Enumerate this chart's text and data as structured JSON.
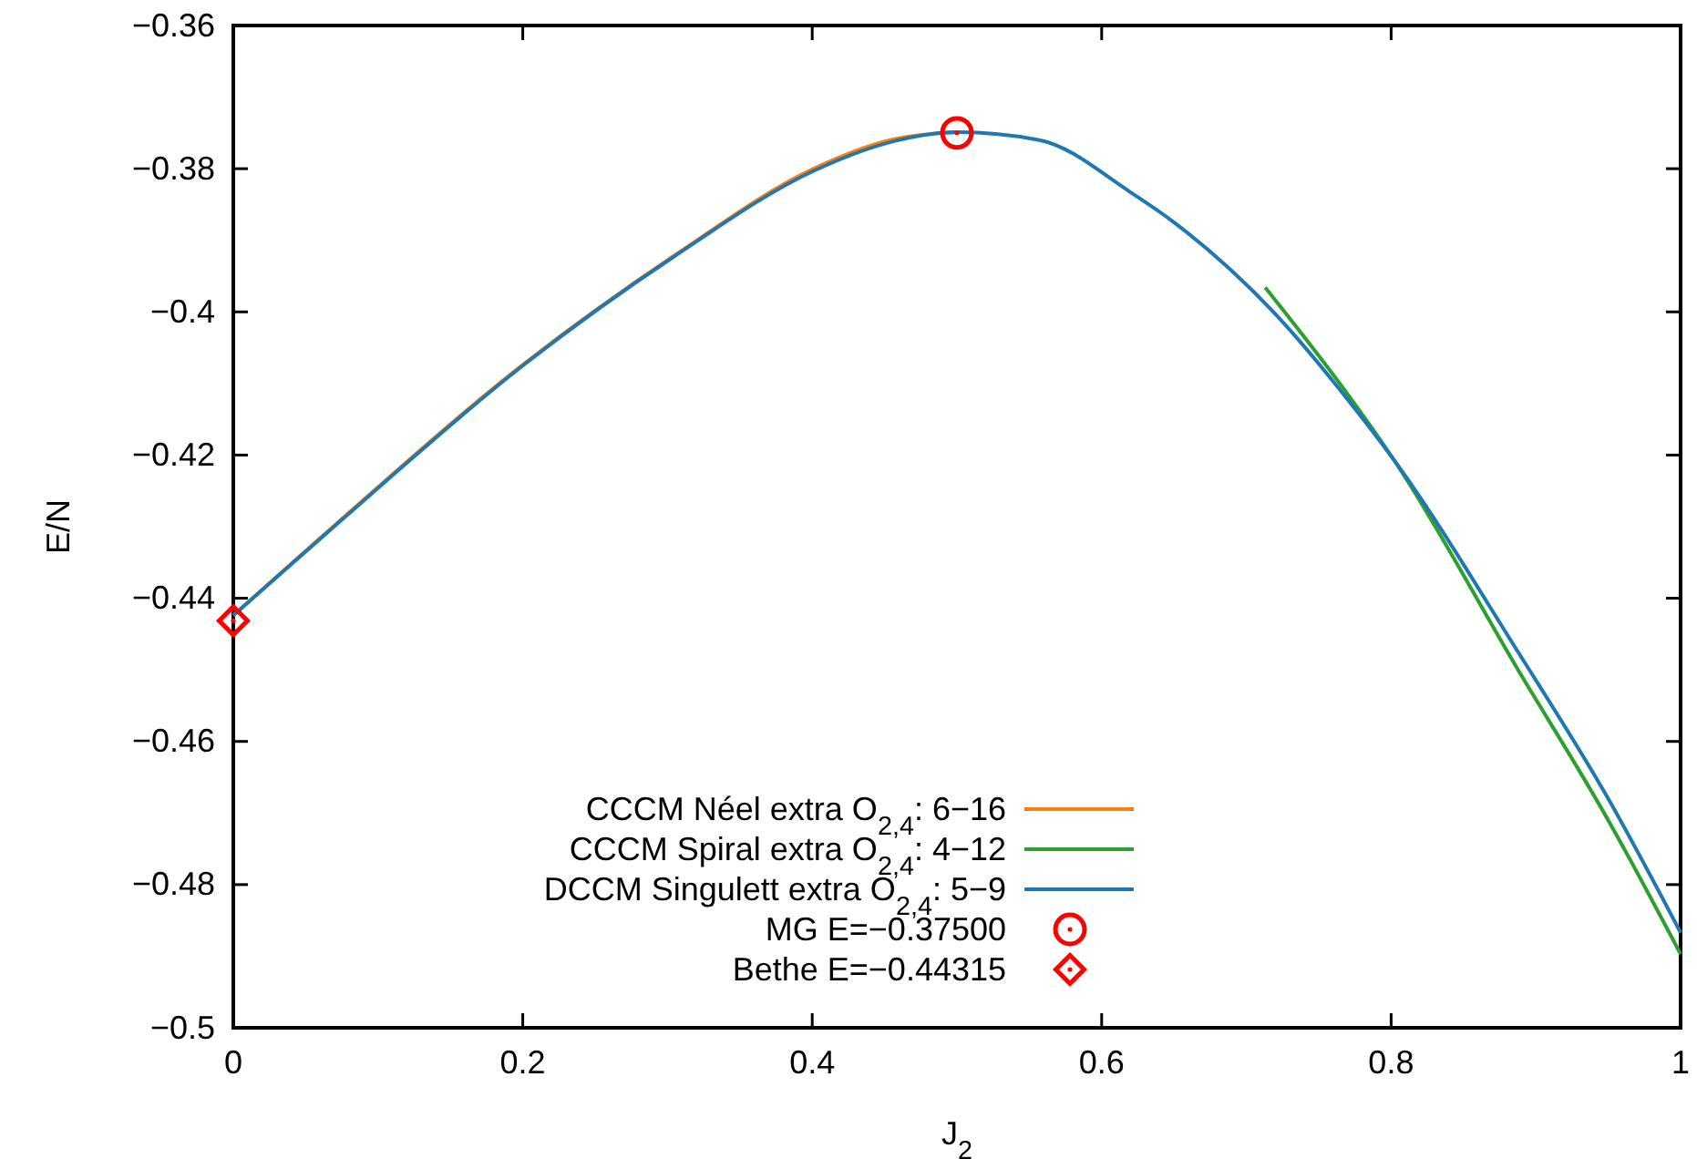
{
  "chart_data": {
    "type": "line",
    "xlabel": "J$_{2}$",
    "ylabel": "E/N",
    "xlim": [
      0,
      1
    ],
    "ylim": [
      -0.5,
      -0.36
    ],
    "xticks": [
      0,
      0.2,
      0.4,
      0.6,
      0.8,
      1
    ],
    "yticks": [
      {
        "value": -0.5,
        "label": "−0.5"
      },
      {
        "value": -0.48,
        "label": "−0.48"
      },
      {
        "value": -0.46,
        "label": "−0.46"
      },
      {
        "value": -0.44,
        "label": "−0.44"
      },
      {
        "value": -0.42,
        "label": "−0.42"
      },
      {
        "value": -0.4,
        "label": "−0.4"
      },
      {
        "value": -0.38,
        "label": "−0.38"
      },
      {
        "value": -0.36,
        "label": "−0.36"
      }
    ],
    "legend": "bottom",
    "grid": false,
    "line_style": "solid",
    "series": [
      {
        "name": "CCCM Néel extra O$_{2,4}$: 6−16",
        "color": "#ff7f0e",
        "x": [
          0,
          0.074,
          0.2,
          0.305,
          0.401,
          0.452,
          0.5
        ],
        "values": [
          -0.4424,
          -0.4291,
          -0.4074,
          -0.3921,
          -0.38,
          -0.3761,
          -0.3749
        ]
      },
      {
        "name": "CCCM Spiral extra O$_{2,4}$: 4−12",
        "color": "#2ca02c",
        "x": [
          0.713,
          0.771,
          0.802,
          0.888,
          0.95,
          1
        ],
        "values": [
          -0.3966,
          -0.4118,
          -0.4207,
          -0.4501,
          -0.471,
          -0.4897
        ]
      },
      {
        "name": "DCCM Singulett extra O$_{2,4}$: 5−9",
        "color": "#1f77b4",
        "x": [
          0,
          0.074,
          0.2,
          0.305,
          0.401,
          0.452,
          0.5,
          0.557,
          0.62,
          0.65,
          0.72,
          0.771,
          0.802,
          0.888,
          0.95,
          1
        ],
        "values": [
          -0.4424,
          -0.4292,
          -0.4075,
          -0.3922,
          -0.3803,
          -0.3764,
          -0.3749,
          -0.376,
          -0.3833,
          -0.3875,
          -0.4003,
          -0.4125,
          -0.4207,
          -0.4476,
          -0.468,
          -0.4867
        ]
      },
      {
        "type": "scatter",
        "name": "MG E=−0.37500",
        "color": "#ff0000",
        "marker": "circle",
        "x": [
          0.5
        ],
        "values": [
          -0.375
        ]
      },
      {
        "type": "scatter",
        "name": "Bethe E=−0.44315",
        "color": "#ff0000",
        "marker": "diamond",
        "x": [
          0
        ],
        "values": [
          -0.44315
        ]
      }
    ]
  }
}
